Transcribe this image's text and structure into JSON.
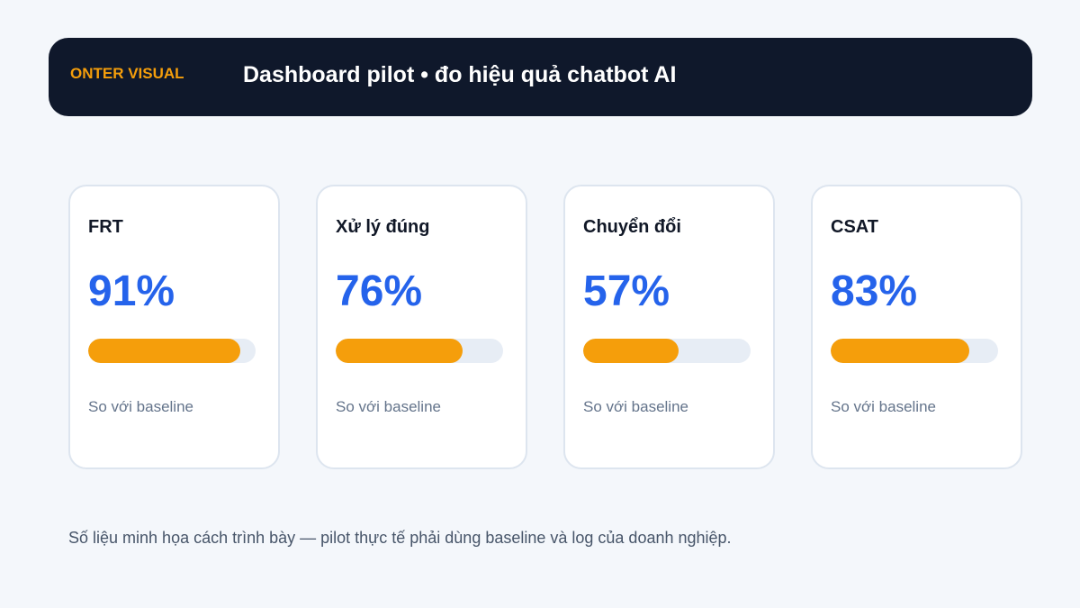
{
  "header": {
    "brand": "ONTER VISUAL",
    "title": "Dashboard pilot • đo hiệu quả chatbot AI"
  },
  "metrics": [
    {
      "label": "FRT",
      "value": "91%",
      "progress": 0.91,
      "caption": "So với baseline"
    },
    {
      "label": "Xử lý đúng",
      "value": "76%",
      "progress": 0.76,
      "caption": "So với baseline"
    },
    {
      "label": "Chuyển đổi",
      "value": "57%",
      "progress": 0.57,
      "caption": "So với baseline"
    },
    {
      "label": "CSAT",
      "value": "83%",
      "progress": 0.83,
      "caption": "So với baseline"
    }
  ],
  "footnote": "Số liệu minh họa cách trình bày — pilot thực tế phải dùng baseline và log của doanh nghiệp.",
  "colors": {
    "background": "#f4f7fb",
    "header_background": "#0f182b",
    "brand_accent": "#f59e0b",
    "metric_value": "#2563eb",
    "progress_fill": "#f59e0b",
    "progress_track": "#e7edf5"
  }
}
